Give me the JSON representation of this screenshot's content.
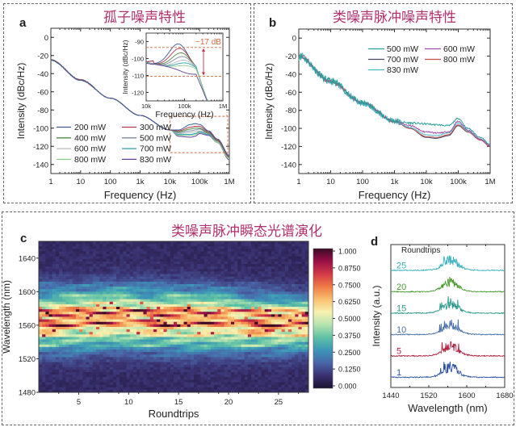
{
  "panels": {
    "top_left_title": "孤子噪声特性",
    "top_right_title": "类噪声脉冲噪声特性",
    "bottom_title": "类噪声脉冲瞬态光谱演化"
  },
  "chart_data": [
    {
      "id": "a",
      "type": "line",
      "panel_label": "a",
      "title": "孤子噪声特性",
      "xlabel": "Frequency (Hz)",
      "ylabel": "Intensity (dBc/Hz)",
      "xscale": "log",
      "xlim": [
        1,
        1000000
      ],
      "ylim": [
        -150,
        10
      ],
      "xticks": [
        1,
        10,
        100,
        1000,
        10000,
        100000,
        1000000
      ],
      "xtick_labels": [
        "1",
        "10",
        "100",
        "1k",
        "10k",
        "100k",
        "1M"
      ],
      "yticks": [
        0,
        -20,
        -40,
        -60,
        -80,
        -100,
        -120,
        -140
      ],
      "legend": {
        "placement": "bottom-left",
        "columns": 2
      },
      "x": [
        1,
        10,
        100,
        1000,
        10000,
        20000,
        50000,
        70000,
        100000,
        200000,
        400000,
        1000000
      ],
      "series": [
        {
          "name": "200 mW",
          "color": "#3e5c9a",
          "values": [
            -25,
            -47,
            -67,
            -86,
            -102,
            -102,
            -96,
            -95,
            -96,
            -103,
            -112,
            -130
          ]
        },
        {
          "name": "300 mW",
          "color": "#b23a48",
          "values": [
            -25,
            -47,
            -67,
            -86,
            -102,
            -103,
            -99,
            -98,
            -98,
            -104,
            -113,
            -131
          ]
        },
        {
          "name": "400 mW",
          "color": "#4f8a45",
          "values": [
            -25,
            -47,
            -67,
            -86,
            -102,
            -104,
            -101,
            -100,
            -100,
            -105,
            -114,
            -132
          ]
        },
        {
          "name": "500 mW",
          "color": "#7a8a9c",
          "values": [
            -25,
            -47,
            -67,
            -86,
            -102,
            -105,
            -103,
            -102,
            -101,
            -106,
            -114,
            -132
          ]
        },
        {
          "name": "600 mW",
          "color": "#b8b8c0",
          "values": [
            -25,
            -47,
            -67,
            -86,
            -102,
            -106,
            -105,
            -104,
            -103,
            -106,
            -115,
            -133
          ]
        },
        {
          "name": "700 mW",
          "color": "#2aa0b0",
          "values": [
            -25,
            -47,
            -67,
            -86,
            -102,
            -107,
            -107,
            -106,
            -104,
            -107,
            -115,
            -133
          ]
        },
        {
          "name": "800 mW",
          "color": "#8fd08f",
          "values": [
            -25,
            -47,
            -67,
            -86,
            -102,
            -108,
            -108,
            -107,
            -105,
            -107,
            -116,
            -134
          ]
        },
        {
          "name": "830 mW",
          "color": "#6a3d9a",
          "values": [
            -25,
            -47,
            -67,
            -86,
            -102,
            -109,
            -110,
            -109,
            -106,
            -108,
            -116,
            -135
          ]
        }
      ],
      "inset": {
        "xlabel": "Frequency (Hz)",
        "ylabel": "Intensity (dBc/Hz)",
        "xlim": [
          10000,
          1000000
        ],
        "ylim": [
          -125,
          -85
        ],
        "xtick_labels": [
          "10k",
          "100k",
          "1M"
        ],
        "yticks": [
          -90,
          -100,
          -110,
          -120
        ],
        "annotation": "~17 dB",
        "annotation_color": "#d2693c",
        "ref_levels": [
          -93.5,
          -110.5
        ]
      },
      "zoom_box": {
        "xlim": [
          10000,
          1000000
        ],
        "ylim": [
          -127,
          -87
        ]
      }
    },
    {
      "id": "b",
      "type": "line",
      "panel_label": "b",
      "title": "类噪声脉冲噪声特性",
      "xlabel": "Frequency (Hz)",
      "ylabel": "Intensity (dBc/Hz)",
      "xscale": "log",
      "xlim": [
        1,
        1000000
      ],
      "ylim": [
        -150,
        10
      ],
      "xtick_labels": [
        "1",
        "10",
        "100",
        "1k",
        "10k",
        "100k",
        "1M"
      ],
      "yticks": [
        0,
        -20,
        -40,
        -60,
        -80,
        -100,
        -120,
        -140
      ],
      "legend": {
        "placement": "top-right",
        "columns": 2
      },
      "x": [
        1,
        10,
        100,
        1000,
        3000,
        10000,
        20000,
        50000,
        100000,
        200000,
        500000,
        1000000
      ],
      "series": [
        {
          "name": "500 mW",
          "color": "#2aa198",
          "values": [
            -20,
            -48,
            -72,
            -92,
            -94,
            -95,
            -96,
            -97,
            -89,
            -100,
            -110,
            -118
          ]
        },
        {
          "name": "600 mW",
          "color": "#a050a8",
          "values": [
            -20,
            -48,
            -72,
            -92,
            -97,
            -104,
            -105,
            -104,
            -92,
            -102,
            -112,
            -119
          ]
        },
        {
          "name": "700 mW",
          "color": "#4a4a6a",
          "values": [
            -20,
            -48,
            -72,
            -92,
            -100,
            -110,
            -111,
            -108,
            -97,
            -104,
            -113,
            -120
          ]
        },
        {
          "name": "800 mW",
          "color": "#c0504d",
          "values": [
            -20,
            -48,
            -72,
            -92,
            -100,
            -109,
            -110,
            -107,
            -96,
            -104,
            -113,
            -120
          ]
        },
        {
          "name": "830 mW",
          "color": "#4bb8c8",
          "values": [
            -20,
            -48,
            -72,
            -92,
            -99,
            -107,
            -108,
            -105,
            -94,
            -103,
            -112,
            -119
          ]
        }
      ]
    },
    {
      "id": "c",
      "type": "heatmap",
      "panel_label": "c",
      "title": "类噪声脉冲瞬态光谱演化",
      "xlabel": "Roundtrips",
      "ylabel": "Wavelength (nm)",
      "xlim": [
        1,
        28
      ],
      "ylim": [
        1480,
        1660
      ],
      "xticks": [
        5,
        10,
        15,
        20,
        25
      ],
      "yticks": [
        1480,
        1520,
        1560,
        1600,
        1640
      ],
      "colorbar": {
        "range": [
          0,
          1
        ],
        "ticks": [
          "1.000",
          "0.8750",
          "0.7500",
          "0.6250",
          "0.5000",
          "0.3750",
          "0.2500",
          "0.1250",
          "0.000"
        ],
        "colors": [
          "#1a1030",
          "#3a3170",
          "#4a66a8",
          "#3b96b8",
          "#5fc2a5",
          "#b5e3b0",
          "#f7f2b0",
          "#f8c070",
          "#ef7a45",
          "#d33a45",
          "#9a1048",
          "#3b0a24"
        ]
      },
      "center_wavelength": 1565,
      "bandwidth_nm": 70
    },
    {
      "id": "d",
      "type": "line",
      "panel_label": "d",
      "xlabel": "Wavelength (nm)",
      "ylabel": "Intensity (a.u.)",
      "xlim": [
        1440,
        1680
      ],
      "xticks": [
        1440,
        1520,
        1600,
        1680
      ],
      "legend_title": "Roundtrips",
      "series": [
        {
          "name": "1",
          "color": "#2a50a0"
        },
        {
          "name": "5",
          "color": "#b02040"
        },
        {
          "name": "10",
          "color": "#4a70a8"
        },
        {
          "name": "15",
          "color": "#2a9a8a"
        },
        {
          "name": "20",
          "color": "#4a9a30"
        },
        {
          "name": "25",
          "color": "#3ab0c0"
        }
      ]
    }
  ]
}
